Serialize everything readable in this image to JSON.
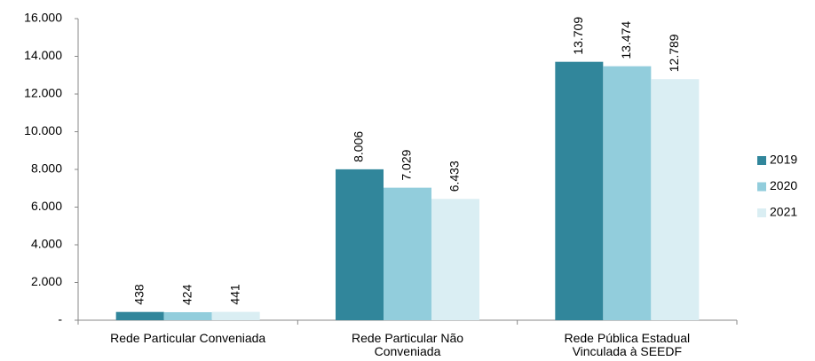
{
  "chart_data": {
    "type": "bar",
    "categories": [
      "Rede Particular Conveniada",
      "Rede Particular Não Conveniada",
      "Rede Pública Estadual Vinculada à SEEDF"
    ],
    "series": [
      {
        "name": "2019",
        "color": "#31869b",
        "values": [
          438,
          8006,
          13709
        ],
        "value_labels": [
          "438",
          "8.006",
          "13.709"
        ]
      },
      {
        "name": "2020",
        "color": "#92cddc",
        "values": [
          424,
          7029,
          13474
        ],
        "value_labels": [
          "424",
          "7.029",
          "13.474"
        ]
      },
      {
        "name": "2021",
        "color": "#daeef3",
        "values": [
          441,
          6433,
          12789
        ],
        "value_labels": [
          "441",
          "6.433",
          "12.789"
        ]
      }
    ],
    "ylim": [
      0,
      16000
    ],
    "yticks": [
      {
        "value": 0,
        "label": "-"
      },
      {
        "value": 2000,
        "label": "2.000"
      },
      {
        "value": 4000,
        "label": "4.000"
      },
      {
        "value": 6000,
        "label": "6.000"
      },
      {
        "value": 8000,
        "label": "8.000"
      },
      {
        "value": 10000,
        "label": "10.000"
      },
      {
        "value": 12000,
        "label": "12.000"
      },
      {
        "value": 14000,
        "label": "14.000"
      },
      {
        "value": 16000,
        "label": "16.000"
      }
    ],
    "legend": "right"
  }
}
